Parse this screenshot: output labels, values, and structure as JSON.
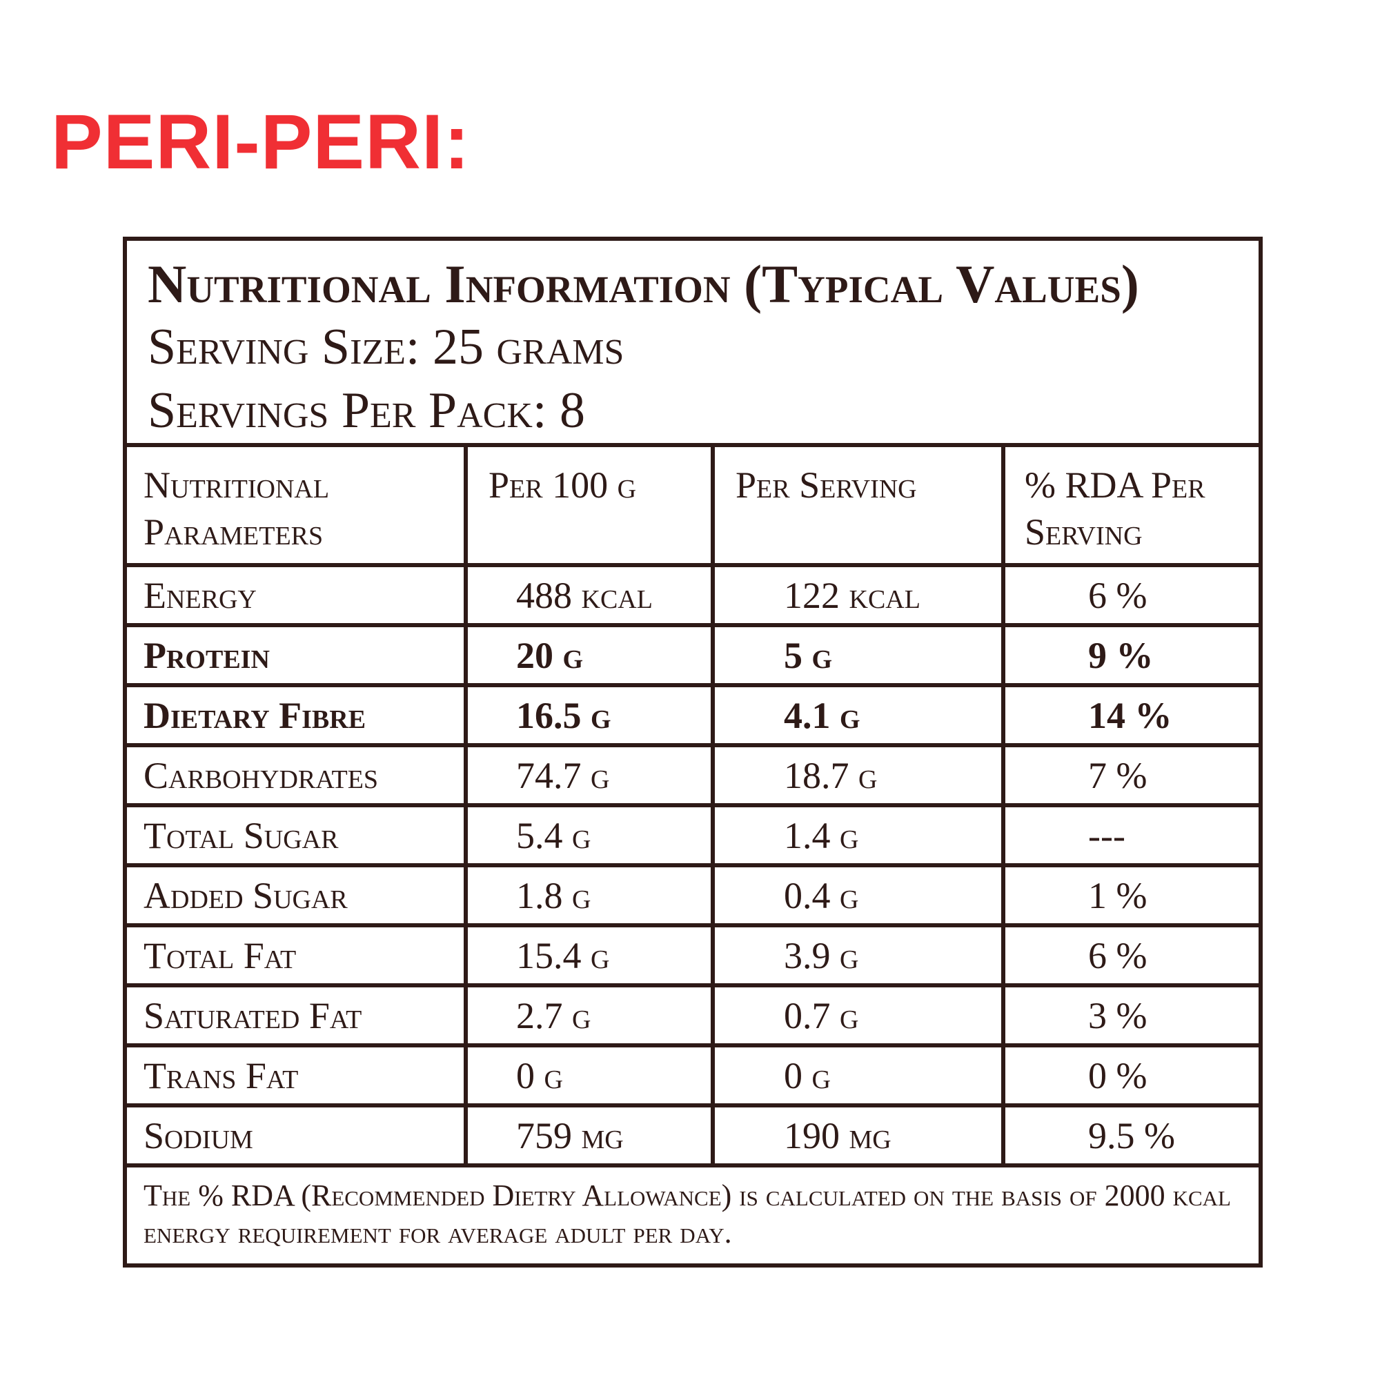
{
  "heading": "PERI-PERI:",
  "panel": {
    "title": "Nutritional Information (Typical Values)",
    "serving_size": "Serving Size: 25 grams",
    "servings_per_pack": "Servings Per Pack: 8"
  },
  "table": {
    "headers": {
      "parameter": "Nutritional Parameters",
      "per_100g": "Per 100 g",
      "per_serving": "Per Serving",
      "rda": "% RDA Per Serving"
    },
    "rows": [
      {
        "name": "Energy",
        "per_100g": "488 kcal",
        "per_serving": "122 kcal",
        "rda": "6 %"
      },
      {
        "name": "Protein",
        "per_100g": "20 g",
        "per_serving": "5 g",
        "rda": "9 %"
      },
      {
        "name": "Dietary Fibre",
        "per_100g": "16.5 g",
        "per_serving": "4.1 g",
        "rda": "14 %"
      },
      {
        "name": "Carbohydrates",
        "per_100g": "74.7 g",
        "per_serving": "18.7 g",
        "rda": "7 %"
      },
      {
        "name": "Total Sugar",
        "per_100g": "5.4 g",
        "per_serving": "1.4 g",
        "rda": "---"
      },
      {
        "name": "Added Sugar",
        "per_100g": "1.8 g",
        "per_serving": "0.4 g",
        "rda": "1 %"
      },
      {
        "name": "Total Fat",
        "per_100g": "15.4 g",
        "per_serving": "3.9 g",
        "rda": "6 %"
      },
      {
        "name": "Saturated Fat",
        "per_100g": "2.7 g",
        "per_serving": "0.7 g",
        "rda": "3 %"
      },
      {
        "name": "Trans Fat",
        "per_100g": "0 g",
        "per_serving": "0 g",
        "rda": "0 %"
      },
      {
        "name": "Sodium",
        "per_100g": "759 mg",
        "per_serving": "190 mg",
        "rda": "9.5 %"
      }
    ]
  },
  "footnote": "The %  RDA (Recommended Dietry Allowance) is calculated on the basis of 2000 kcal energy requirement for average adult per day.",
  "colors": {
    "heading": "#f02f34",
    "ink": "#2e1a17",
    "background": "#ffffff"
  }
}
